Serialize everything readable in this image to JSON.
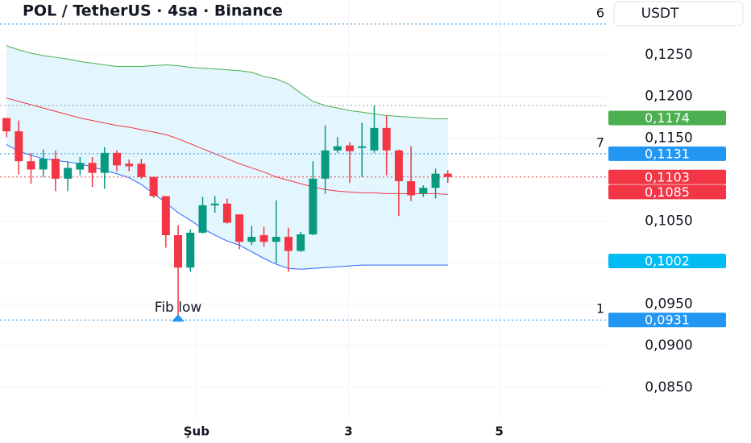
{
  "chart_data": {
    "type": "candlestick",
    "title": "POL / TetherUS · 4sa · Binance",
    "currency": "USDT",
    "x": [
      0,
      1,
      2,
      3,
      4,
      5,
      6,
      7,
      8,
      9,
      10,
      11,
      12,
      13,
      14,
      15,
      16,
      17,
      18,
      19,
      20,
      21,
      22,
      23,
      24,
      25,
      26,
      27,
      28,
      29,
      30,
      31,
      32,
      33,
      34,
      35,
      36
    ],
    "open": [
      0.1174,
      0.1158,
      0.1122,
      0.1112,
      0.1125,
      0.1101,
      0.1112,
      0.112,
      0.1108,
      0.1132,
      0.1119,
      0.1119,
      0.1103,
      0.108,
      0.1033,
      0.0994,
      0.1036,
      0.1069,
      0.1071,
      0.1058,
      0.1025,
      0.1033,
      0.1025,
      0.1031,
      0.1014,
      0.1034,
      0.1101,
      0.1135,
      0.1141,
      0.1138,
      0.1135,
      0.1162,
      0.1135,
      0.1098,
      0.1083,
      0.109,
      0.1107
    ],
    "high": [
      0.1174,
      0.1171,
      0.1132,
      0.1136,
      0.1135,
      0.1122,
      0.1127,
      0.1127,
      0.1139,
      0.1135,
      0.1124,
      0.1125,
      0.1103,
      0.108,
      0.1045,
      0.104,
      0.1079,
      0.108,
      0.1077,
      0.1058,
      0.1044,
      0.1043,
      0.1075,
      0.1042,
      0.1037,
      0.1122,
      0.1165,
      0.1151,
      0.1145,
      0.1168,
      0.1189,
      0.1177,
      0.1136,
      0.114,
      0.1093,
      0.1113,
      0.1111
    ],
    "low": [
      0.1151,
      0.1106,
      0.1095,
      0.1103,
      0.1086,
      0.1086,
      0.1105,
      0.1091,
      0.1089,
      0.111,
      0.111,
      0.1101,
      0.1078,
      0.1018,
      0.0929,
      0.0989,
      0.1035,
      0.106,
      0.1047,
      0.1016,
      0.1021,
      0.1019,
      0.0999,
      0.0989,
      0.1013,
      0.1033,
      0.1083,
      0.1132,
      0.1096,
      0.1103,
      0.1132,
      0.1105,
      0.1056,
      0.1074,
      0.1079,
      0.1077,
      0.1096
    ],
    "close": [
      0.1158,
      0.1122,
      0.1112,
      0.1125,
      0.1101,
      0.1114,
      0.112,
      0.1108,
      0.1132,
      0.1117,
      0.1116,
      0.1103,
      0.108,
      0.1033,
      0.0994,
      0.1036,
      0.1069,
      0.1071,
      0.1048,
      0.1025,
      0.1031,
      0.1025,
      0.1031,
      0.1014,
      0.1034,
      0.1101,
      0.1135,
      0.114,
      0.1134,
      0.114,
      0.1162,
      0.1135,
      0.1098,
      0.1081,
      0.109,
      0.1107,
      0.1103
    ],
    "up_color": "#089981",
    "down_color": "#f23645",
    "band_fill": "#e3f6fd",
    "series": [
      {
        "color": "#4caf50",
        "values": [
          0.1261,
          0.1256,
          0.1252,
          0.1249,
          0.1247,
          0.1245,
          0.1242,
          0.124,
          0.1238,
          0.1236,
          0.1236,
          0.1236,
          0.1237,
          0.1238,
          0.1237,
          0.1235,
          0.1234,
          0.1233,
          0.1232,
          0.1231,
          0.1229,
          0.1224,
          0.1221,
          0.1215,
          0.1204,
          0.1194,
          0.1189,
          0.1186,
          0.1183,
          0.1181,
          0.1179,
          0.1177,
          0.1176,
          0.1175,
          0.1174,
          0.1173,
          0.1173
        ]
      },
      {
        "color": "#f23645",
        "values": [
          0.1198,
          0.1194,
          0.119,
          0.1186,
          0.1182,
          0.1178,
          0.1174,
          0.1171,
          0.1168,
          0.1165,
          0.1163,
          0.116,
          0.1157,
          0.1154,
          0.1149,
          0.1143,
          0.1137,
          0.1131,
          0.1125,
          0.1119,
          0.1114,
          0.1109,
          0.1103,
          0.1099,
          0.1095,
          0.1091,
          0.1088,
          0.1086,
          0.1085,
          0.1084,
          0.1084,
          0.1083,
          0.1083,
          0.1083,
          0.1083,
          0.1083,
          0.1082
        ]
      },
      {
        "color": "#2962ff",
        "values": [
          0.1142,
          0.1134,
          0.1129,
          0.1125,
          0.1123,
          0.1121,
          0.1119,
          0.1115,
          0.1111,
          0.1107,
          0.1102,
          0.1094,
          0.1083,
          0.1072,
          0.106,
          0.1051,
          0.1041,
          0.1033,
          0.1026,
          0.1021,
          0.1013,
          0.1005,
          0.0998,
          0.0993,
          0.0992,
          0.0993,
          0.0994,
          0.0995,
          0.0996,
          0.0997,
          0.0997,
          0.0997,
          0.0997,
          0.0997,
          0.0997,
          0.0997,
          0.0997
        ]
      }
    ],
    "xlim": [
      -0.53,
      48.9
    ],
    "xticks": [
      {
        "value": 15.5,
        "label": "Şub"
      },
      {
        "value": 27.9,
        "label": "3"
      },
      {
        "value": 40.2,
        "label": "5"
      }
    ],
    "ylim": [
      0.0812,
      0.1316
    ],
    "yticks": [
      {
        "value": 0.085,
        "label": "0,0850"
      },
      {
        "value": 0.09,
        "label": "0,0900"
      },
      {
        "value": 0.095,
        "label": "0,0950"
      },
      {
        "value": 0.1,
        "label": "0,1000"
      },
      {
        "value": 0.105,
        "label": "0,1050"
      },
      {
        "value": 0.115,
        "label": "0,1150"
      },
      {
        "value": 0.12,
        "label": "0,1200"
      },
      {
        "value": 0.125,
        "label": "0,1250"
      }
    ],
    "grid": true,
    "levels": [
      {
        "value": 0.1287,
        "color": "#2196f3",
        "fib": "6"
      },
      {
        "value": 0.1189,
        "color": "#9598a1"
      },
      {
        "value": 0.1131,
        "color": "#2196f3",
        "fib": "7"
      },
      {
        "value": 0.1103,
        "color": "#f23645"
      },
      {
        "value": 0.0931,
        "color": "#2196f3",
        "fib": "1"
      }
    ],
    "badges": [
      {
        "value": 0.1174,
        "label": "0,1174",
        "color": "#4caf50"
      },
      {
        "value": 0.1131,
        "label": "0,1131",
        "color": "#2196f3"
      },
      {
        "value": 0.1103,
        "label": "0,1103",
        "color": "#f23645"
      },
      {
        "value": 0.1085,
        "label": "0,1085",
        "color": "#f23645"
      },
      {
        "value": 0.1002,
        "label": "0,1002",
        "color": "#00bcf2"
      },
      {
        "value": 0.0931,
        "label": "0,0931",
        "color": "#2196f3"
      }
    ],
    "annotation": {
      "text": "Fib low",
      "x": 14,
      "y": 0.0931,
      "color": "#2196f3"
    }
  }
}
